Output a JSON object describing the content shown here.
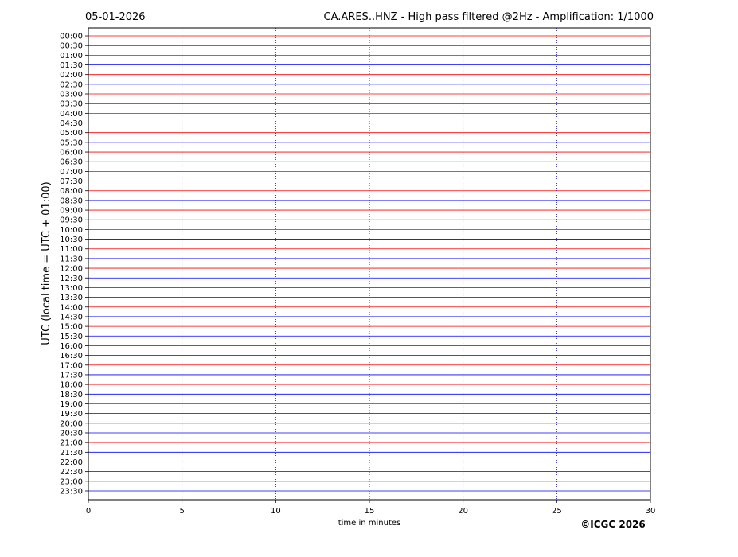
{
  "chart_data": {
    "type": "helicorder",
    "date": "05-01-2026",
    "title": "CA.ARES..HNZ - High pass filtered @2Hz - Amplification: 1/1000",
    "ylabel": "UTC (local time = UTC + 01:00)",
    "xlabel": "time in minutes",
    "copyright": "©ICGC 2026",
    "categories": [
      "00:00",
      "00:30",
      "01:00",
      "01:30",
      "02:00",
      "02:30",
      "03:00",
      "03:30",
      "04:00",
      "04:30",
      "05:00",
      "05:30",
      "06:00",
      "06:30",
      "07:00",
      "07:30",
      "08:00",
      "08:30",
      "09:00",
      "09:30",
      "10:00",
      "10:30",
      "11:00",
      "11:30",
      "12:00",
      "12:30",
      "13:00",
      "13:30",
      "14:00",
      "14:30",
      "15:00",
      "15:30",
      "16:00",
      "16:30",
      "17:00",
      "17:30",
      "18:00",
      "18:30",
      "19:00",
      "19:30",
      "20:00",
      "20:30",
      "21:00",
      "21:30",
      "22:00",
      "22:30",
      "23:00",
      "23:30"
    ],
    "trace_colors": [
      "red",
      "blue"
    ],
    "xlim": [
      0,
      30
    ],
    "xticks": [
      0,
      5,
      10,
      15,
      20,
      25,
      30
    ],
    "grid": true
  }
}
